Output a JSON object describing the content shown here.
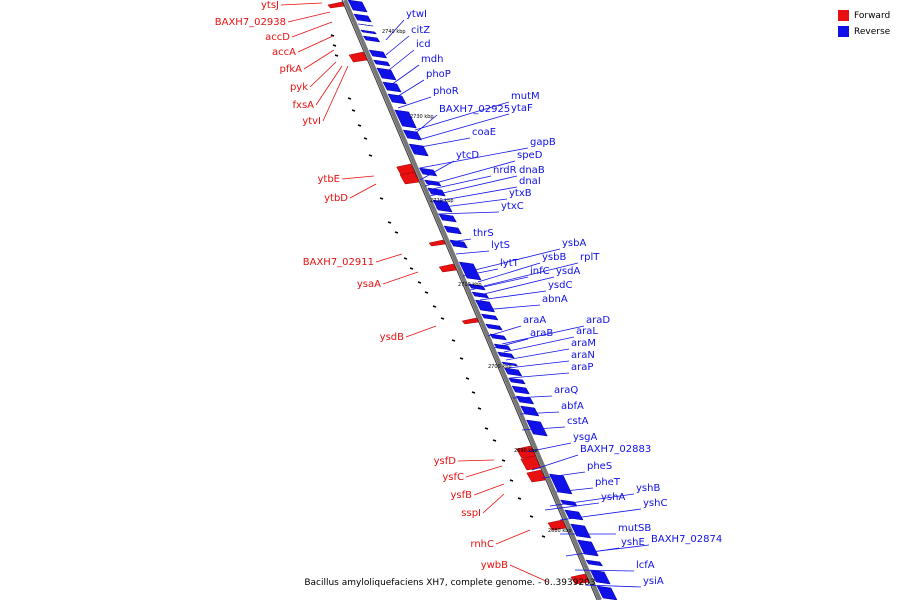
{
  "legend": {
    "forward_label": "Forward",
    "reverse_label": "Reverse",
    "forward_color": "#e81010",
    "reverse_color": "#1010e8"
  },
  "caption": "Bacillus amyloliquefaciens XH7, complete genome. - 0..3939203",
  "ticks": [
    "2740 kbp",
    "2730 kbp",
    "2720 kbp",
    "2710 kbp",
    "2700 kbp",
    "2690 kbp",
    "2680 kbp"
  ],
  "reverse_genes": [
    "ytwI",
    "citZ",
    "icd",
    "mdh",
    "phoP",
    "phoR",
    "mutM",
    "BAXH7_02925",
    "ytaF",
    "coaE",
    "gapB",
    "ytcD",
    "speD",
    "nrdR",
    "dnaB",
    "dnaI",
    "ytxB",
    "ytxC",
    "thrS",
    "lytS",
    "ysbA",
    "lytT",
    "ysbB",
    "rplT",
    "infC",
    "ysdA",
    "ysdC",
    "abnA",
    "araA",
    "araD",
    "araB",
    "araL",
    "araM",
    "araN",
    "araP",
    "araQ",
    "abfA",
    "cstA",
    "ysgA",
    "BAXH7_02883",
    "pheS",
    "pheT",
    "yshB",
    "yshA",
    "yshC",
    "mutSB",
    "BAXH7_02874",
    "yshE",
    "lcfA",
    "ysiA"
  ],
  "forward_genes": [
    "ytsJ",
    "BAXH7_02938",
    "accD",
    "accA",
    "pfkA",
    "pyk",
    "fxsA",
    "ytvI",
    "ytbE",
    "ytbD",
    "BAXH7_02911",
    "ysaA",
    "ysdB",
    "ysfD",
    "ysfC",
    "ysfB",
    "sspI",
    "rnhC",
    "ywbB"
  ]
}
